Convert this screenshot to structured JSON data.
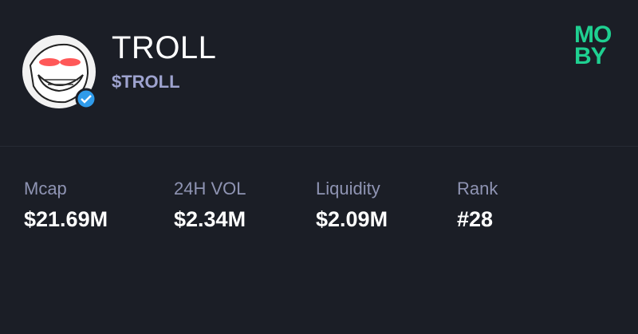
{
  "token": {
    "name": "TROLL",
    "ticker": "$TROLL"
  },
  "brand_lines": [
    "MO",
    "BY"
  ],
  "stats": [
    {
      "label": "Mcap",
      "value": "$21.69M"
    },
    {
      "label": "24H VOL",
      "value": "$2.34M"
    },
    {
      "label": "Liquidity",
      "value": "$2.09M"
    },
    {
      "label": "Rank",
      "value": "#28"
    }
  ]
}
